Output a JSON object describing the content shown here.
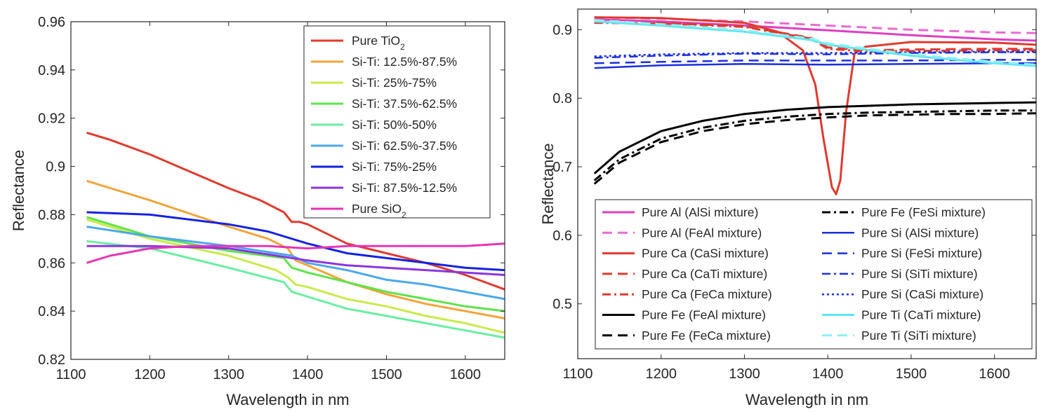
{
  "chart_data": [
    {
      "type": "line",
      "xlabel": "Wavelength in nm",
      "ylabel": "Reflectance",
      "xlim": [
        1100,
        1650
      ],
      "ylim": [
        0.82,
        0.96
      ],
      "xticks": [
        "1100",
        "1200",
        "1300",
        "1400",
        "1500",
        "1600"
      ],
      "yticks": [
        "0.82",
        "0.84",
        "0.86",
        "0.88",
        "0.9",
        "0.92",
        "0.94",
        "0.96"
      ],
      "legend_position": "top-right",
      "series": [
        {
          "name": "Pure TiO",
          "sub": "2",
          "color": "#e03a2e",
          "x": [
            1120,
            1150,
            1200,
            1250,
            1300,
            1340,
            1370,
            1380,
            1390,
            1400,
            1450,
            1500,
            1550,
            1600,
            1650
          ],
          "y": [
            0.914,
            0.911,
            0.905,
            0.898,
            0.891,
            0.886,
            0.881,
            0.877,
            0.877,
            0.876,
            0.868,
            0.864,
            0.86,
            0.855,
            0.849
          ]
        },
        {
          "name": "Si-Ti: 12.5%-87.5%",
          "color": "#f2a43a",
          "x": [
            1120,
            1200,
            1300,
            1350,
            1375,
            1385,
            1400,
            1450,
            1500,
            1550,
            1600,
            1650
          ],
          "y": [
            0.894,
            0.886,
            0.875,
            0.87,
            0.866,
            0.861,
            0.859,
            0.852,
            0.847,
            0.843,
            0.84,
            0.837
          ]
        },
        {
          "name": "Si-Ti: 25%-75%",
          "color": "#c7eb4a",
          "x": [
            1120,
            1200,
            1300,
            1360,
            1375,
            1385,
            1400,
            1450,
            1500,
            1550,
            1600,
            1650
          ],
          "y": [
            0.878,
            0.87,
            0.863,
            0.857,
            0.854,
            0.851,
            0.85,
            0.845,
            0.842,
            0.838,
            0.835,
            0.831
          ]
        },
        {
          "name": "Si-Ti: 37.5%-62.5%",
          "color": "#5ee34a",
          "x": [
            1120,
            1200,
            1300,
            1370,
            1380,
            1400,
            1450,
            1500,
            1550,
            1600,
            1650
          ],
          "y": [
            0.879,
            0.871,
            0.865,
            0.862,
            0.858,
            0.856,
            0.852,
            0.848,
            0.845,
            0.842,
            0.84
          ]
        },
        {
          "name": "Si-Ti: 50%-50%",
          "color": "#69eea0",
          "x": [
            1120,
            1200,
            1300,
            1370,
            1380,
            1400,
            1450,
            1500,
            1550,
            1600,
            1650
          ],
          "y": [
            0.869,
            0.866,
            0.858,
            0.852,
            0.848,
            0.846,
            0.841,
            0.838,
            0.835,
            0.832,
            0.829
          ]
        },
        {
          "name": "Si-Ti: 62.5%-37.5%",
          "color": "#4aa8ec",
          "x": [
            1120,
            1200,
            1300,
            1380,
            1400,
            1450,
            1500,
            1550,
            1600,
            1650
          ],
          "y": [
            0.875,
            0.871,
            0.867,
            0.863,
            0.86,
            0.857,
            0.853,
            0.851,
            0.848,
            0.845
          ]
        },
        {
          "name": "Si-Ti: 75%-25%",
          "color": "#1522e0",
          "x": [
            1120,
            1200,
            1300,
            1350,
            1400,
            1450,
            1500,
            1550,
            1600,
            1650
          ],
          "y": [
            0.881,
            0.88,
            0.876,
            0.873,
            0.868,
            0.864,
            0.862,
            0.86,
            0.858,
            0.857
          ]
        },
        {
          "name": "Si-Ti: 87.5%-12.5%",
          "color": "#8a35e0",
          "x": [
            1120,
            1200,
            1300,
            1400,
            1450,
            1500,
            1550,
            1600,
            1650
          ],
          "y": [
            0.867,
            0.867,
            0.866,
            0.861,
            0.859,
            0.858,
            0.857,
            0.856,
            0.855
          ]
        },
        {
          "name": "Pure SiO",
          "sub": "2",
          "color": "#e535b5",
          "x": [
            1120,
            1150,
            1200,
            1250,
            1300,
            1350,
            1400,
            1450,
            1500,
            1550,
            1600,
            1650
          ],
          "y": [
            0.86,
            0.863,
            0.866,
            0.867,
            0.867,
            0.867,
            0.866,
            0.867,
            0.867,
            0.867,
            0.867,
            0.868
          ]
        }
      ]
    },
    {
      "type": "line",
      "xlabel": "Wavelength in nm",
      "ylabel": "Reflectance",
      "xlim": [
        1100,
        1650
      ],
      "ylim": [
        0.42,
        0.93
      ],
      "xticks": [
        "1100",
        "1200",
        "1300",
        "1400",
        "1500",
        "1600"
      ],
      "yticks": [
        "0.5",
        "0.6",
        "0.7",
        "0.8",
        "0.9"
      ],
      "legend_position": "bottom",
      "series": [
        {
          "name": "Pure Al (AlSi mixture)",
          "color": "#dd3fc2",
          "dash": "solid",
          "width": 3,
          "x": [
            1120,
            1200,
            1300,
            1400,
            1500,
            1600,
            1650
          ],
          "y": [
            0.915,
            0.912,
            0.906,
            0.899,
            0.892,
            0.886,
            0.884
          ]
        },
        {
          "name": "Pure Al (FeAl mixture)",
          "color": "#e96bd0",
          "dash": "dashed",
          "width": 3,
          "x": [
            1120,
            1200,
            1300,
            1400,
            1500,
            1600,
            1650
          ],
          "y": [
            0.918,
            0.916,
            0.912,
            0.906,
            0.9,
            0.896,
            0.895
          ]
        },
        {
          "name": "Pure Ca (CaSi mixture)",
          "color": "#e03a2e",
          "dash": "solid",
          "width": 3,
          "x": [
            1120,
            1200,
            1300,
            1340,
            1370,
            1385,
            1395,
            1405,
            1410,
            1415,
            1422,
            1432,
            1445,
            1500,
            1600,
            1650
          ],
          "y": [
            0.918,
            0.917,
            0.91,
            0.897,
            0.87,
            0.82,
            0.74,
            0.67,
            0.66,
            0.68,
            0.78,
            0.865,
            0.875,
            0.882,
            0.881,
            0.878
          ]
        },
        {
          "name": "Pure Ca (CaTi mixture)",
          "color": "#e03a2e",
          "dash": "dashed",
          "width": 3,
          "x": [
            1120,
            1200,
            1300,
            1380,
            1400,
            1450,
            1500,
            1600,
            1650
          ],
          "y": [
            0.911,
            0.91,
            0.905,
            0.888,
            0.874,
            0.87,
            0.871,
            0.872,
            0.872
          ]
        },
        {
          "name": "Pure Ca (FeCa mixture)",
          "color": "#e03a2e",
          "dash": "dashdot",
          "width": 3,
          "x": [
            1120,
            1200,
            1300,
            1380,
            1400,
            1450,
            1500,
            1600,
            1650
          ],
          "y": [
            0.91,
            0.909,
            0.904,
            0.887,
            0.872,
            0.868,
            0.869,
            0.87,
            0.87
          ]
        },
        {
          "name": "Pure Fe (FeAl mixture)",
          "color": "#000000",
          "dash": "solid",
          "width": 3,
          "x": [
            1120,
            1150,
            1200,
            1250,
            1300,
            1350,
            1400,
            1450,
            1500,
            1550,
            1600,
            1650
          ],
          "y": [
            0.69,
            0.722,
            0.752,
            0.767,
            0.777,
            0.783,
            0.787,
            0.789,
            0.791,
            0.792,
            0.793,
            0.794
          ]
        },
        {
          "name": "Pure Fe (FeCa mixture)",
          "color": "#000000",
          "dash": "dashed",
          "width": 3,
          "x": [
            1120,
            1150,
            1200,
            1250,
            1300,
            1350,
            1400,
            1450,
            1500,
            1550,
            1600,
            1650
          ],
          "y": [
            0.675,
            0.706,
            0.736,
            0.752,
            0.762,
            0.768,
            0.772,
            0.775,
            0.776,
            0.777,
            0.777,
            0.778
          ]
        },
        {
          "name": "Pure Fe (FeSi mixture)",
          "color": "#000000",
          "dash": "dashdot",
          "width": 3,
          "x": [
            1120,
            1150,
            1200,
            1250,
            1300,
            1350,
            1400,
            1450,
            1500,
            1550,
            1600,
            1650
          ],
          "y": [
            0.68,
            0.711,
            0.741,
            0.757,
            0.767,
            0.773,
            0.777,
            0.779,
            0.78,
            0.781,
            0.782,
            0.782
          ]
        },
        {
          "name": "Pure Si (AlSi mixture)",
          "color": "#1a2ee0",
          "dash": "solid",
          "width": 2.5,
          "x": [
            1120,
            1200,
            1300,
            1400,
            1500,
            1600,
            1650
          ],
          "y": [
            0.844,
            0.848,
            0.85,
            0.849,
            0.85,
            0.851,
            0.851
          ]
        },
        {
          "name": "Pure Si (FeSi mixture)",
          "color": "#1a2ee0",
          "dash": "dashed",
          "width": 2.5,
          "x": [
            1120,
            1200,
            1300,
            1400,
            1500,
            1600,
            1650
          ],
          "y": [
            0.851,
            0.853,
            0.855,
            0.855,
            0.855,
            0.856,
            0.856
          ]
        },
        {
          "name": "Pure Si (SiTi mixture)",
          "color": "#1a2ee0",
          "dash": "dashdot",
          "width": 2.5,
          "x": [
            1120,
            1200,
            1300,
            1400,
            1500,
            1600,
            1650
          ],
          "y": [
            0.859,
            0.862,
            0.865,
            0.864,
            0.866,
            0.867,
            0.867
          ]
        },
        {
          "name": "Pure Si (CaSi mixture)",
          "color": "#1a2ee0",
          "dash": "dotted",
          "width": 2.5,
          "x": [
            1120,
            1200,
            1300,
            1400,
            1500,
            1600,
            1650
          ],
          "y": [
            0.861,
            0.864,
            0.866,
            0.866,
            0.867,
            0.868,
            0.868
          ]
        },
        {
          "name": "Pure Ti (CaTi mixture)",
          "color": "#5de6f0",
          "dash": "solid",
          "width": 3,
          "x": [
            1120,
            1200,
            1300,
            1380,
            1400,
            1450,
            1500,
            1600,
            1650
          ],
          "y": [
            0.912,
            0.906,
            0.897,
            0.885,
            0.878,
            0.87,
            0.862,
            0.851,
            0.847
          ]
        },
        {
          "name": "Pure Ti (SiTi mixture)",
          "color": "#8cf0f5",
          "dash": "dashed",
          "width": 3,
          "x": [
            1120,
            1200,
            1300,
            1380,
            1400,
            1450,
            1500,
            1600,
            1650
          ],
          "y": [
            0.914,
            0.908,
            0.899,
            0.887,
            0.88,
            0.872,
            0.864,
            0.853,
            0.849
          ]
        }
      ]
    }
  ]
}
